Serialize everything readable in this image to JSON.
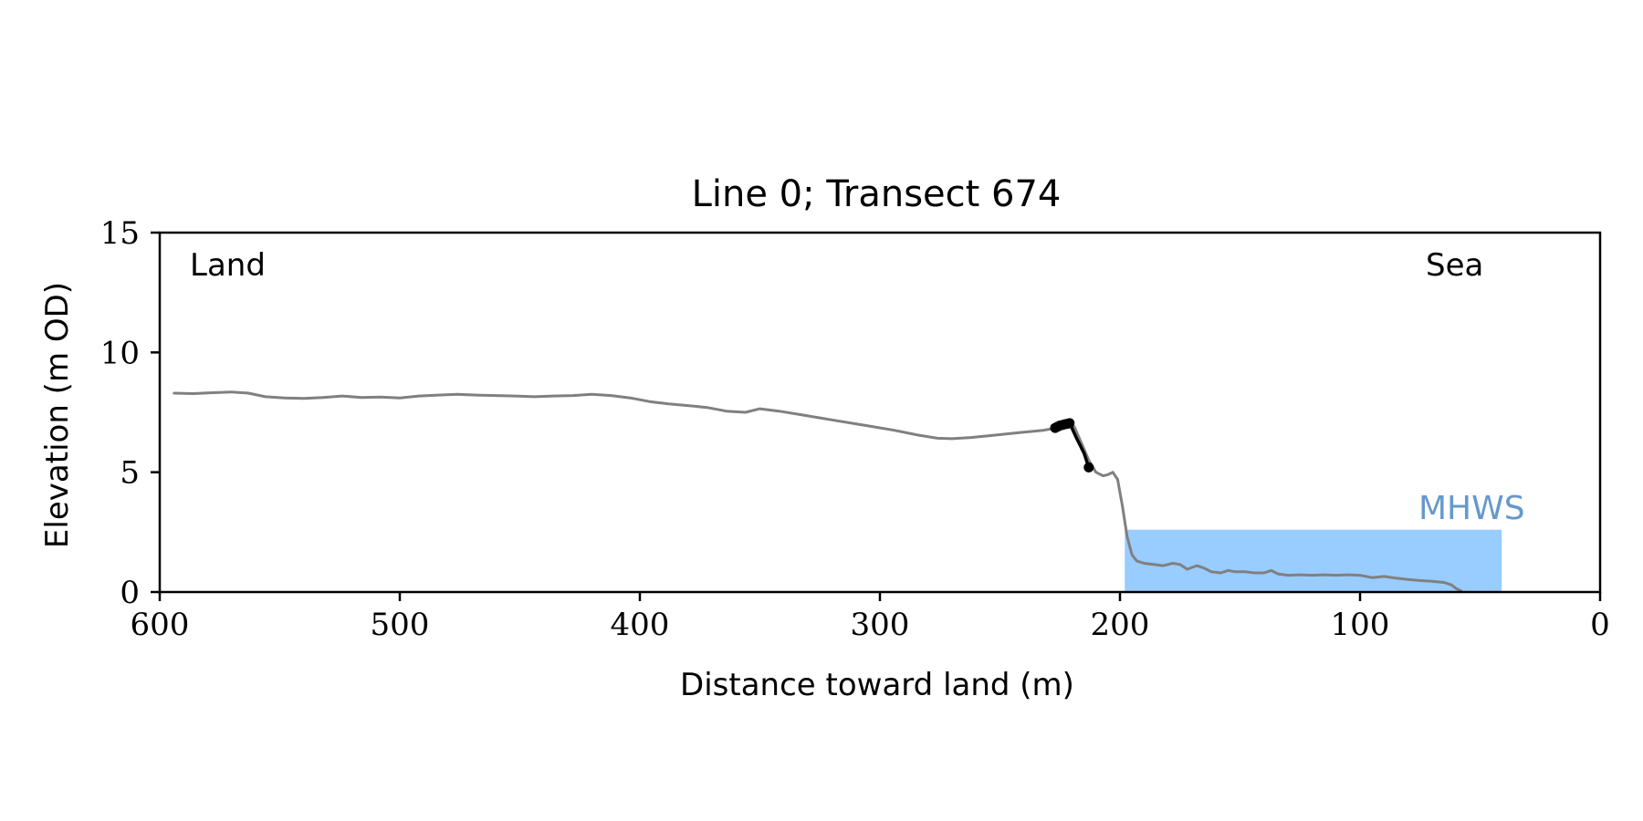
{
  "chart_data": {
    "type": "line",
    "title": "Line 0; Transect 674",
    "xlabel": "Distance toward land (m)",
    "ylabel": "Elevation (m OD)",
    "xlim": [
      600,
      0
    ],
    "ylim": [
      0,
      15
    ],
    "x_ticks": [
      600,
      500,
      400,
      300,
      200,
      100,
      0
    ],
    "y_ticks": [
      0,
      5,
      10,
      15
    ],
    "grid": false,
    "annotations": {
      "land": "Land",
      "sea": "Sea",
      "mhws": "MHWS"
    },
    "mhws": {
      "x_start": 198,
      "x_end": 41,
      "elevation": 2.6,
      "color": "#99ccff",
      "label_color": "#6699cc"
    },
    "series": [
      {
        "role": "profile",
        "color": "#808080",
        "points": [
          [
            594,
            8.3
          ],
          [
            586,
            8.28
          ],
          [
            578,
            8.32
          ],
          [
            570,
            8.35
          ],
          [
            563,
            8.3
          ],
          [
            556,
            8.15
          ],
          [
            548,
            8.1
          ],
          [
            540,
            8.08
          ],
          [
            532,
            8.12
          ],
          [
            524,
            8.18
          ],
          [
            516,
            8.12
          ],
          [
            508,
            8.14
          ],
          [
            500,
            8.1
          ],
          [
            492,
            8.18
          ],
          [
            484,
            8.22
          ],
          [
            476,
            8.25
          ],
          [
            468,
            8.22
          ],
          [
            460,
            8.2
          ],
          [
            452,
            8.18
          ],
          [
            444,
            8.15
          ],
          [
            436,
            8.18
          ],
          [
            428,
            8.2
          ],
          [
            420,
            8.25
          ],
          [
            412,
            8.2
          ],
          [
            404,
            8.1
          ],
          [
            396,
            7.95
          ],
          [
            388,
            7.85
          ],
          [
            380,
            7.78
          ],
          [
            372,
            7.7
          ],
          [
            364,
            7.55
          ],
          [
            356,
            7.5
          ],
          [
            350,
            7.65
          ],
          [
            342,
            7.55
          ],
          [
            330,
            7.35
          ],
          [
            318,
            7.15
          ],
          [
            306,
            6.95
          ],
          [
            294,
            6.75
          ],
          [
            284,
            6.55
          ],
          [
            276,
            6.42
          ],
          [
            270,
            6.4
          ],
          [
            262,
            6.45
          ],
          [
            252,
            6.55
          ],
          [
            242,
            6.65
          ],
          [
            232,
            6.75
          ],
          [
            226,
            6.85
          ],
          [
            222,
            7.05
          ],
          [
            219,
            6.9
          ],
          [
            216,
            6.2
          ],
          [
            213,
            5.5
          ],
          [
            210,
            5.0
          ],
          [
            207,
            4.85
          ],
          [
            205,
            4.9
          ],
          [
            203,
            5.0
          ],
          [
            201,
            4.7
          ],
          [
            199,
            3.6
          ],
          [
            197,
            2.3
          ],
          [
            195,
            1.55
          ],
          [
            193,
            1.3
          ],
          [
            190,
            1.2
          ],
          [
            186,
            1.15
          ],
          [
            182,
            1.1
          ],
          [
            178,
            1.2
          ],
          [
            175,
            1.15
          ],
          [
            172,
            0.95
          ],
          [
            168,
            1.1
          ],
          [
            165,
            1.0
          ],
          [
            162,
            0.85
          ],
          [
            158,
            0.8
          ],
          [
            155,
            0.9
          ],
          [
            152,
            0.85
          ],
          [
            148,
            0.85
          ],
          [
            144,
            0.8
          ],
          [
            140,
            0.8
          ],
          [
            137,
            0.9
          ],
          [
            134,
            0.75
          ],
          [
            130,
            0.7
          ],
          [
            125,
            0.72
          ],
          [
            120,
            0.7
          ],
          [
            115,
            0.72
          ],
          [
            110,
            0.7
          ],
          [
            105,
            0.72
          ],
          [
            100,
            0.7
          ],
          [
            95,
            0.6
          ],
          [
            90,
            0.65
          ],
          [
            85,
            0.58
          ],
          [
            80,
            0.52
          ],
          [
            75,
            0.48
          ],
          [
            70,
            0.45
          ],
          [
            65,
            0.4
          ],
          [
            62,
            0.3
          ],
          [
            60,
            0.15
          ],
          [
            58,
            0.05
          ]
        ]
      },
      {
        "role": "cliff-edge",
        "color": "#000000",
        "points": [
          [
            227,
            6.85
          ],
          [
            225,
            6.95
          ],
          [
            223,
            7.0
          ],
          [
            221,
            7.05
          ],
          [
            218,
            6.4
          ],
          [
            215,
            5.8
          ],
          [
            213,
            5.2
          ]
        ],
        "markers": [
          [
            227,
            6.85
          ],
          [
            226,
            6.9
          ],
          [
            225,
            6.95
          ],
          [
            224,
            6.97
          ],
          [
            223,
            7.0
          ],
          [
            222,
            7.02
          ],
          [
            221,
            7.05
          ],
          [
            213,
            5.2
          ]
        ]
      }
    ],
    "shaded_region": {
      "color": "#d0d0d0",
      "upper": [
        [
          227,
          6.85
        ],
        [
          223,
          7.0
        ],
        [
          221,
          7.05
        ],
        [
          218,
          6.4
        ],
        [
          215,
          5.8
        ],
        [
          213,
          5.2
        ]
      ],
      "lower": [
        [
          213,
          5.2
        ],
        [
          216,
          6.2
        ],
        [
          219,
          6.9
        ],
        [
          222,
          7.05
        ],
        [
          226,
          6.85
        ]
      ]
    }
  }
}
